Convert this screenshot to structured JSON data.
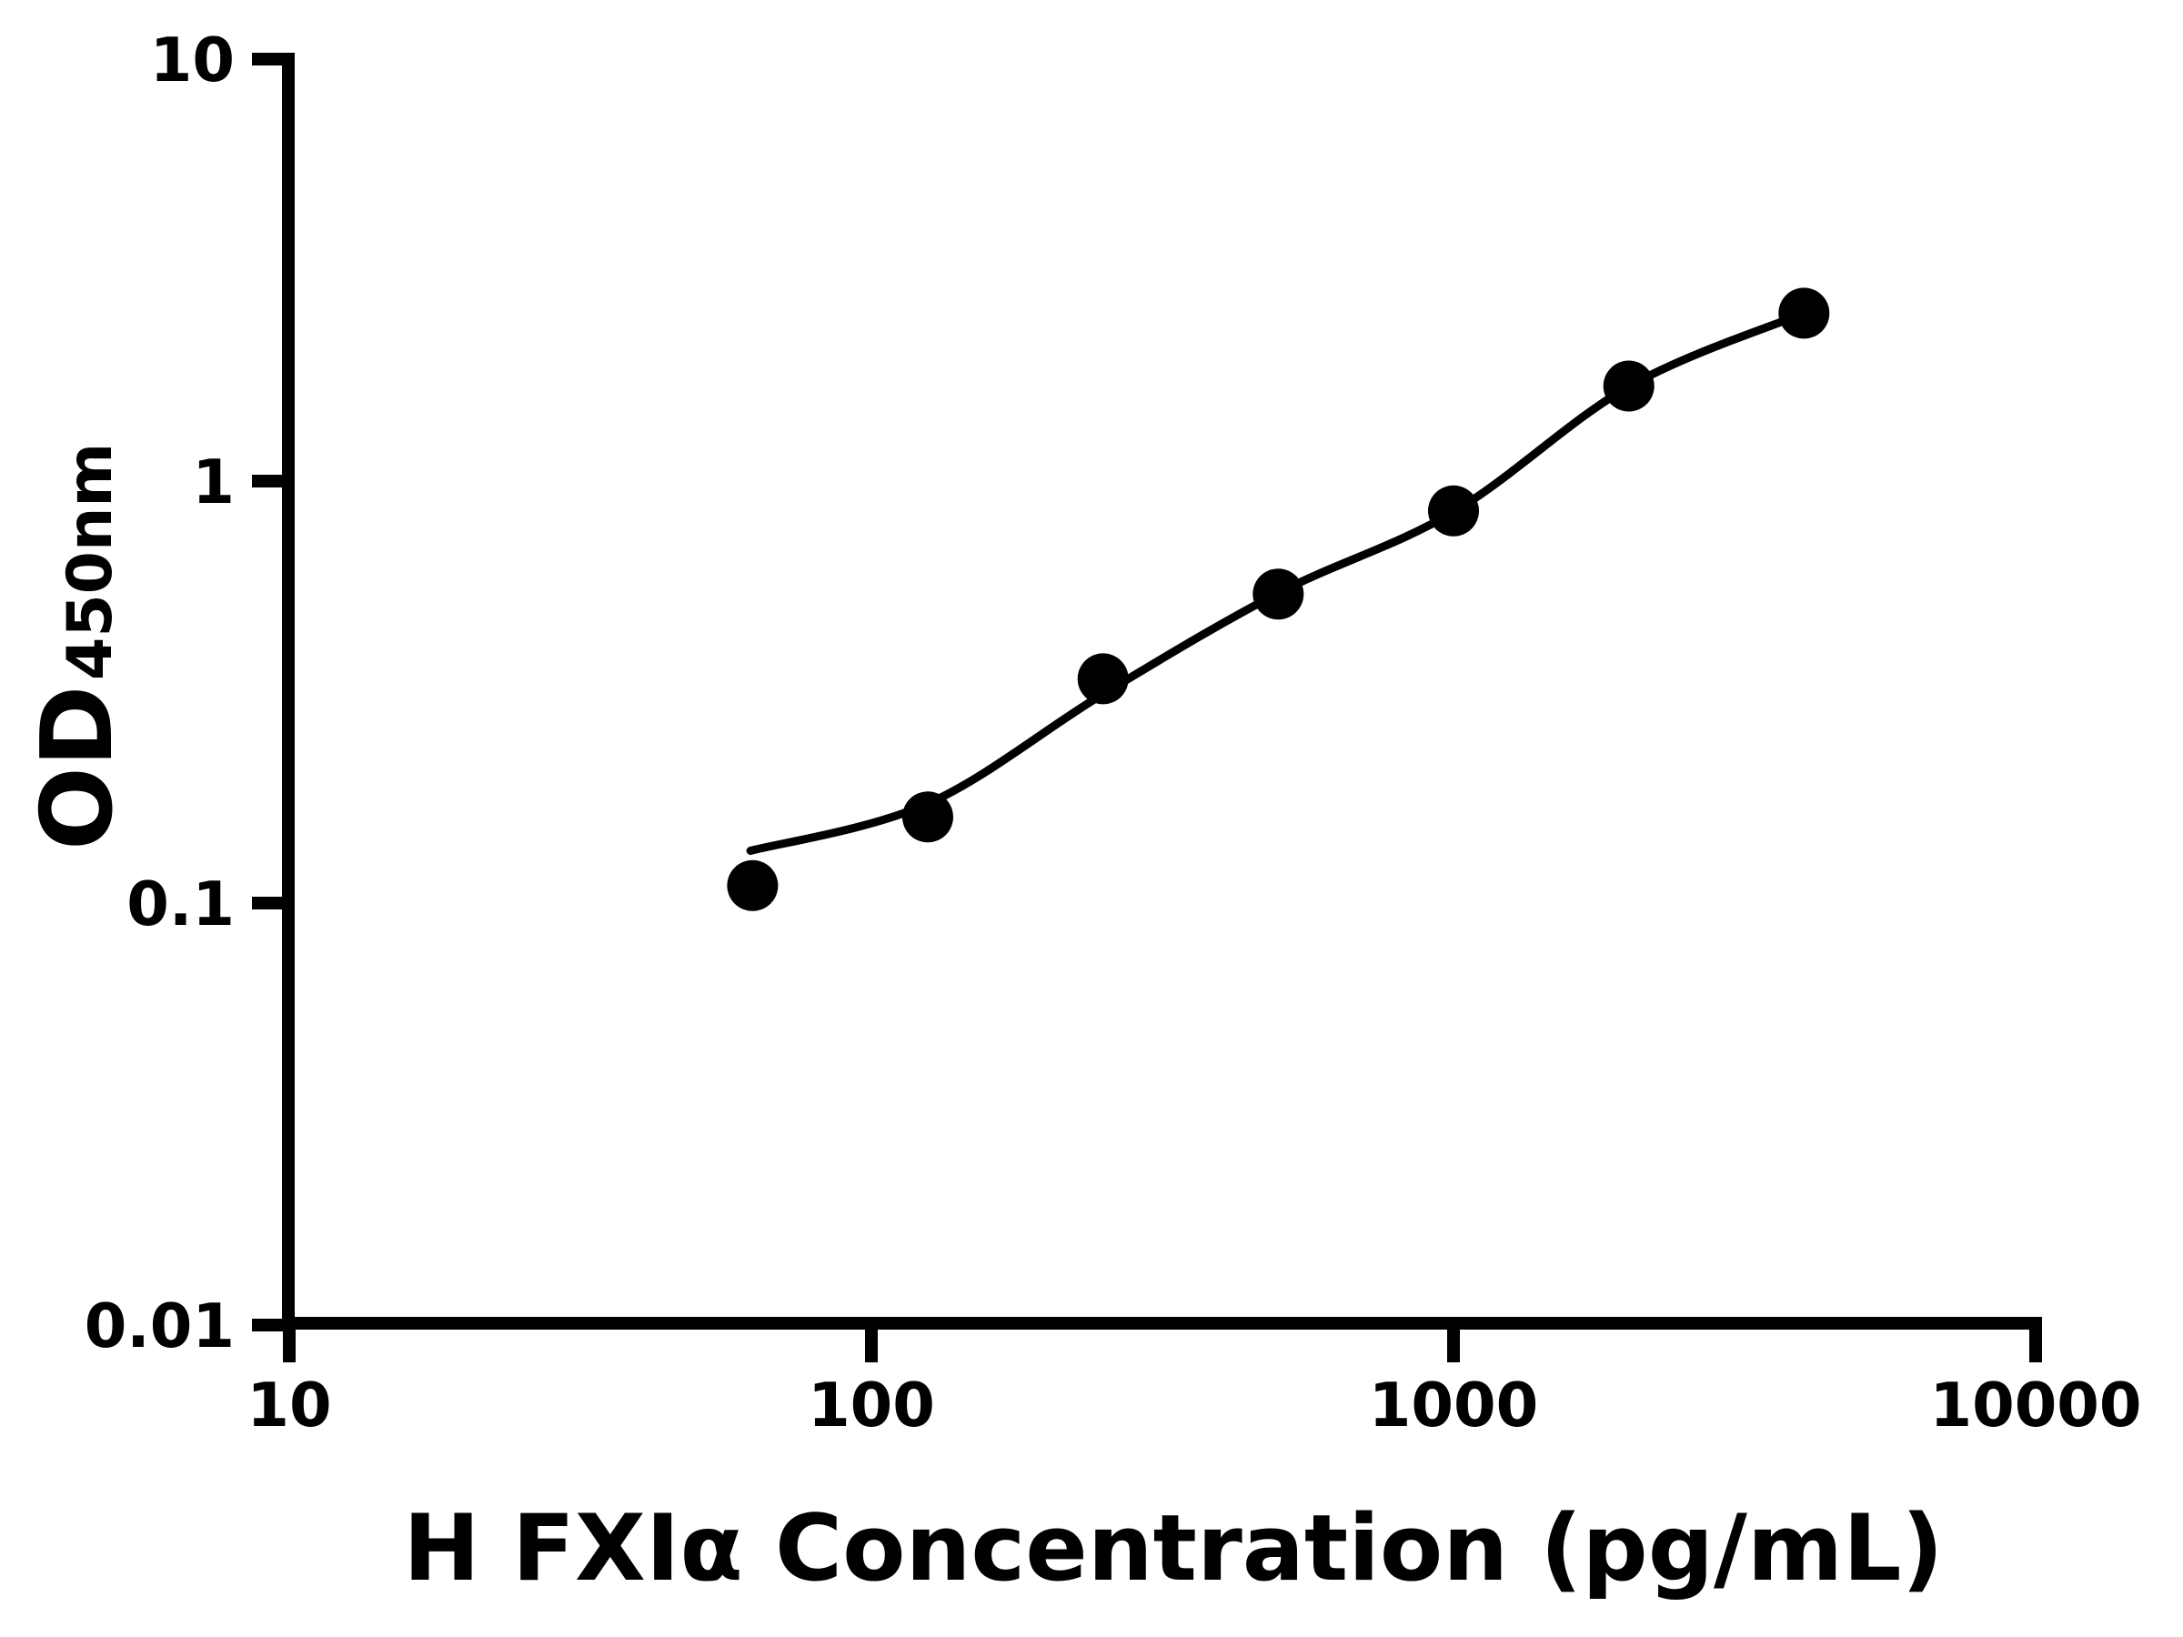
{
  "colors": {
    "foreground": "#000000",
    "background": "#ffffff"
  },
  "chart_data": {
    "type": "scatter",
    "title": "",
    "xlabel": "H FXIα Concentration (pg/mL)",
    "ylabel_main": "OD",
    "ylabel_sub": "450nm",
    "x_scale": "log",
    "y_scale": "log",
    "xlim": [
      10,
      10000
    ],
    "ylim": [
      0.01,
      10
    ],
    "grid": false,
    "legend": false,
    "x_ticks": [
      {
        "v": 10,
        "label": "10"
      },
      {
        "v": 100,
        "label": "100"
      },
      {
        "v": 1000,
        "label": "1000"
      },
      {
        "v": 10000,
        "label": "10000"
      }
    ],
    "y_ticks": [
      {
        "v": 10,
        "label": "10"
      },
      {
        "v": 1,
        "label": "1"
      },
      {
        "v": 0.1,
        "label": "0.1"
      },
      {
        "v": 0.01,
        "label": "0.01"
      }
    ],
    "series": [
      {
        "name": "standard-points",
        "type": "scatter",
        "marker": "circle",
        "color": "#000000",
        "points": [
          {
            "x": 62.5,
            "y": 0.11
          },
          {
            "x": 125,
            "y": 0.16
          },
          {
            "x": 250,
            "y": 0.34
          },
          {
            "x": 500,
            "y": 0.54
          },
          {
            "x": 1000,
            "y": 0.85
          },
          {
            "x": 2000,
            "y": 1.68
          },
          {
            "x": 4000,
            "y": 2.5
          }
        ]
      },
      {
        "name": "fitted-curve",
        "type": "line",
        "color": "#000000",
        "points": [
          {
            "x": 62,
            "y": 0.133
          },
          {
            "x": 125,
            "y": 0.172
          },
          {
            "x": 250,
            "y": 0.313
          },
          {
            "x": 500,
            "y": 0.543
          },
          {
            "x": 1000,
            "y": 0.845
          },
          {
            "x": 2000,
            "y": 1.675
          },
          {
            "x": 4000,
            "y": 2.5
          }
        ]
      }
    ]
  }
}
